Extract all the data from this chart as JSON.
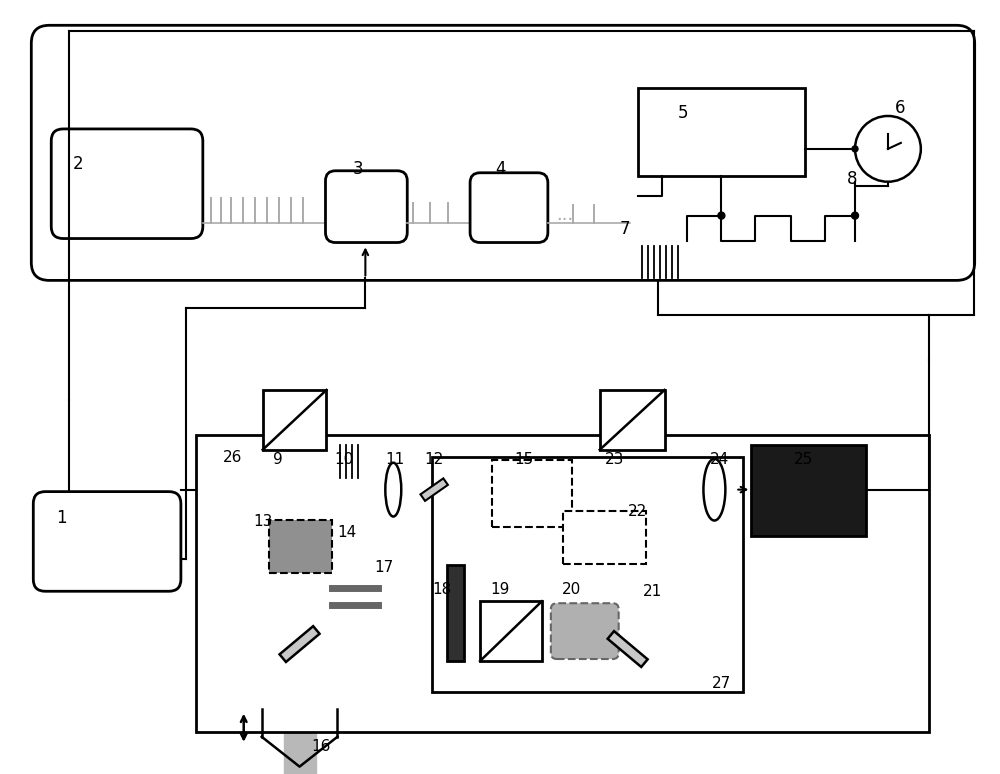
{
  "bg": "#ffffff",
  "lc": "#000000",
  "gray": "#999999",
  "lgray": "#c8c8c8",
  "beam_gray": "#b8b8b8",
  "dark": "#1a1a1a",
  "pulse_gray": "#aaaaaa"
}
